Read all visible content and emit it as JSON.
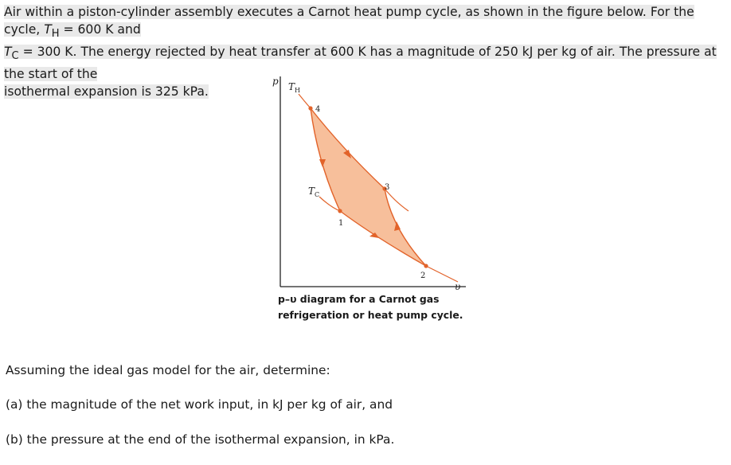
{
  "problem": {
    "line1a": "Air within a piston-cylinder assembly executes a Carnot heat pump cycle, as shown in the figure below. For the cycle, ",
    "th_sym": "T",
    "th_sub": "H",
    "th_val": " = 600 K and",
    "tc_sym": "T",
    "tc_sub": "C",
    "line2": " = 300 K. The energy rejected by heat transfer at 600 K has a magnitude of 250 kJ per kg of air. The pressure at the start of the",
    "line3": "isothermal expansion is 325 kPa."
  },
  "figure": {
    "p_axis_label": "p",
    "v_axis_label": "υ",
    "th_label": "T",
    "th_label_sub": "H",
    "tc_label": "T",
    "tc_label_sub": "C",
    "state_1": "1",
    "state_2": "2",
    "state_3": "3",
    "state_4": "4",
    "colors": {
      "fill": "#f7bf9b",
      "line": "#e2632a",
      "axis": "#222222"
    }
  },
  "caption": {
    "line1": "p–υ diagram for a Carnot gas",
    "line2": "refrigeration or heat pump cycle."
  },
  "questions": {
    "intro": "Assuming the ideal gas model for the air, determine:",
    "a": "(a) the magnitude of the net work input, in kJ per kg of air, and",
    "b": "(b) the pressure at the end of the isothermal expansion, in kPa."
  }
}
